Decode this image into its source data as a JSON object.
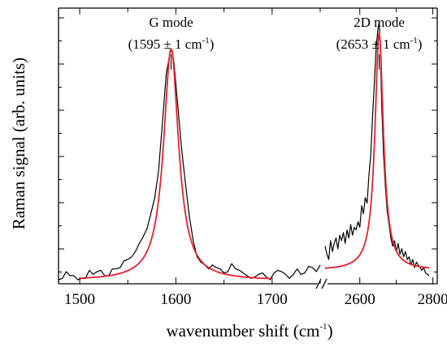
{
  "chart_data": {
    "type": "line",
    "title": "",
    "xlabel": "wavenumber shift (cm",
    "xlabel_sup": "-1",
    "xlabel_tail": ")",
    "ylabel": "Raman signal (arb. units)",
    "axis_break": true,
    "segments": [
      {
        "xlim": [
          1478,
          1750
        ],
        "xticks": [
          1500,
          1600,
          1700
        ]
      },
      {
        "xlim": [
          2505,
          2812
        ],
        "xticks": [
          2600,
          2800
        ]
      }
    ],
    "xtick_labels": [
      "1500",
      "1600",
      "1700",
      "2600",
      "2800"
    ],
    "ylim": [
      0,
      1.0
    ],
    "grid": false,
    "series": [
      {
        "color": "#000000",
        "segment": 0,
        "x": [
          1478,
          1482,
          1486,
          1490,
          1494,
          1498,
          1502,
          1506,
          1510,
          1514,
          1518,
          1522,
          1526,
          1530,
          1534,
          1538,
          1542,
          1546,
          1550,
          1554,
          1558,
          1562,
          1566,
          1570,
          1574,
          1578,
          1582,
          1586,
          1590,
          1594,
          1596,
          1598,
          1602,
          1606,
          1610,
          1614,
          1618,
          1622,
          1626,
          1630,
          1634,
          1638,
          1642,
          1646,
          1650,
          1654,
          1658,
          1662,
          1666,
          1670,
          1674,
          1678,
          1682,
          1686,
          1690,
          1694,
          1698,
          1702,
          1706,
          1710,
          1714,
          1718,
          1722,
          1726,
          1730,
          1734,
          1738,
          1742,
          1746,
          1750
        ],
        "y": [
          0.015,
          0.02,
          0.045,
          0.03,
          0.03,
          0.015,
          0.02,
          0.02,
          0.05,
          0.035,
          0.045,
          0.05,
          0.03,
          0.03,
          0.055,
          0.055,
          0.06,
          0.085,
          0.09,
          0.1,
          0.12,
          0.15,
          0.175,
          0.205,
          0.26,
          0.32,
          0.42,
          0.6,
          0.78,
          0.86,
          0.87,
          0.82,
          0.66,
          0.5,
          0.37,
          0.25,
          0.16,
          0.1,
          0.08,
          0.07,
          0.055,
          0.07,
          0.06,
          0.055,
          0.04,
          0.045,
          0.075,
          0.055,
          0.05,
          0.04,
          0.03,
          0.02,
          0.025,
          0.035,
          0.04,
          0.025,
          0.015,
          0.04,
          0.05,
          0.045,
          0.035,
          0.02,
          0.035,
          0.055,
          0.035,
          0.04,
          0.065,
          0.06,
          0.045,
          0.07
        ]
      },
      {
        "color": "#e8202a",
        "segment": 0,
        "fit": "lorentzian",
        "center": 1595,
        "hwhm": 9.5,
        "amplitude": 0.86,
        "baseline": 0.012,
        "x_range": [
          1500,
          1700
        ]
      },
      {
        "color": "#000000",
        "segment": 1,
        "x": [
          2505,
          2510,
          2515,
          2520,
          2525,
          2530,
          2535,
          2540,
          2545,
          2550,
          2555,
          2560,
          2565,
          2570,
          2575,
          2580,
          2585,
          2590,
          2595,
          2600,
          2605,
          2610,
          2615,
          2620,
          2625,
          2630,
          2635,
          2640,
          2645,
          2650,
          2653,
          2656,
          2660,
          2665,
          2670,
          2675,
          2680,
          2685,
          2690,
          2695,
          2700,
          2705,
          2710,
          2715,
          2720,
          2725,
          2730,
          2735,
          2740,
          2745,
          2750,
          2755,
          2760,
          2765,
          2770,
          2775,
          2780,
          2785,
          2790
        ],
        "y": [
          0.14,
          0.11,
          0.09,
          0.16,
          0.12,
          0.15,
          0.17,
          0.13,
          0.18,
          0.16,
          0.19,
          0.15,
          0.2,
          0.17,
          0.22,
          0.18,
          0.21,
          0.2,
          0.23,
          0.21,
          0.29,
          0.26,
          0.32,
          0.3,
          0.4,
          0.48,
          0.62,
          0.75,
          0.88,
          0.95,
          0.97,
          0.88,
          0.66,
          0.48,
          0.36,
          0.27,
          0.22,
          0.17,
          0.14,
          0.16,
          0.12,
          0.15,
          0.11,
          0.13,
          0.1,
          0.12,
          0.09,
          0.1,
          0.07,
          0.09,
          0.06,
          0.08,
          0.07,
          0.06,
          0.05,
          0.06,
          0.04,
          0.035,
          0.03
        ]
      },
      {
        "color": "#e8202a",
        "segment": 1,
        "fit": "lorentzian",
        "center": 2653,
        "hwhm": 14,
        "amplitude": 0.88,
        "baseline": 0.05,
        "x_range": [
          2505,
          2790
        ]
      }
    ],
    "annotations": [
      {
        "line1": "G mode",
        "line2_pre": "(1595 ± 1 cm",
        "line2_sup": "-1",
        "line2_post": ")",
        "segment": 0,
        "x": 1595
      },
      {
        "line1": "2D mode",
        "line2_pre": "(2653 ± 1 cm",
        "line2_sup": "-1",
        "line2_post": ")",
        "segment": 1,
        "x": 2653
      }
    ]
  }
}
